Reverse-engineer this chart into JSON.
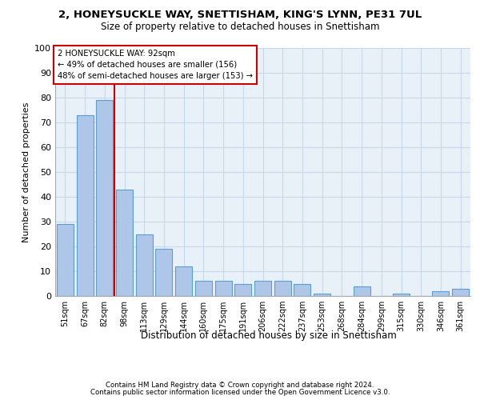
{
  "title1": "2, HONEYSUCKLE WAY, SNETTISHAM, KING'S LYNN, PE31 7UL",
  "title2": "Size of property relative to detached houses in Snettisham",
  "xlabel": "Distribution of detached houses by size in Snettisham",
  "ylabel": "Number of detached properties",
  "categories": [
    "51sqm",
    "67sqm",
    "82sqm",
    "98sqm",
    "113sqm",
    "129sqm",
    "144sqm",
    "160sqm",
    "175sqm",
    "191sqm",
    "206sqm",
    "222sqm",
    "237sqm",
    "253sqm",
    "268sqm",
    "284sqm",
    "299sqm",
    "315sqm",
    "330sqm",
    "346sqm",
    "361sqm"
  ],
  "values": [
    29,
    73,
    79,
    43,
    25,
    19,
    12,
    6,
    6,
    5,
    6,
    6,
    5,
    1,
    0,
    4,
    0,
    1,
    0,
    2,
    3
  ],
  "bar_color": "#aec6e8",
  "bar_edge_color": "#5a9fd4",
  "vline_x": 2.5,
  "vline_color": "#cc0000",
  "annotation_text": "2 HONEYSUCKLE WAY: 92sqm\n← 49% of detached houses are smaller (156)\n48% of semi-detached houses are larger (153) →",
  "annotation_box_color": "#ffffff",
  "annotation_box_edge": "#cc0000",
  "ylim": [
    0,
    100
  ],
  "yticks": [
    0,
    10,
    20,
    30,
    40,
    50,
    60,
    70,
    80,
    90,
    100
  ],
  "grid_color": "#c8d8e8",
  "bg_color": "#e8f0f8",
  "footer1": "Contains HM Land Registry data © Crown copyright and database right 2024.",
  "footer2": "Contains public sector information licensed under the Open Government Licence v3.0."
}
